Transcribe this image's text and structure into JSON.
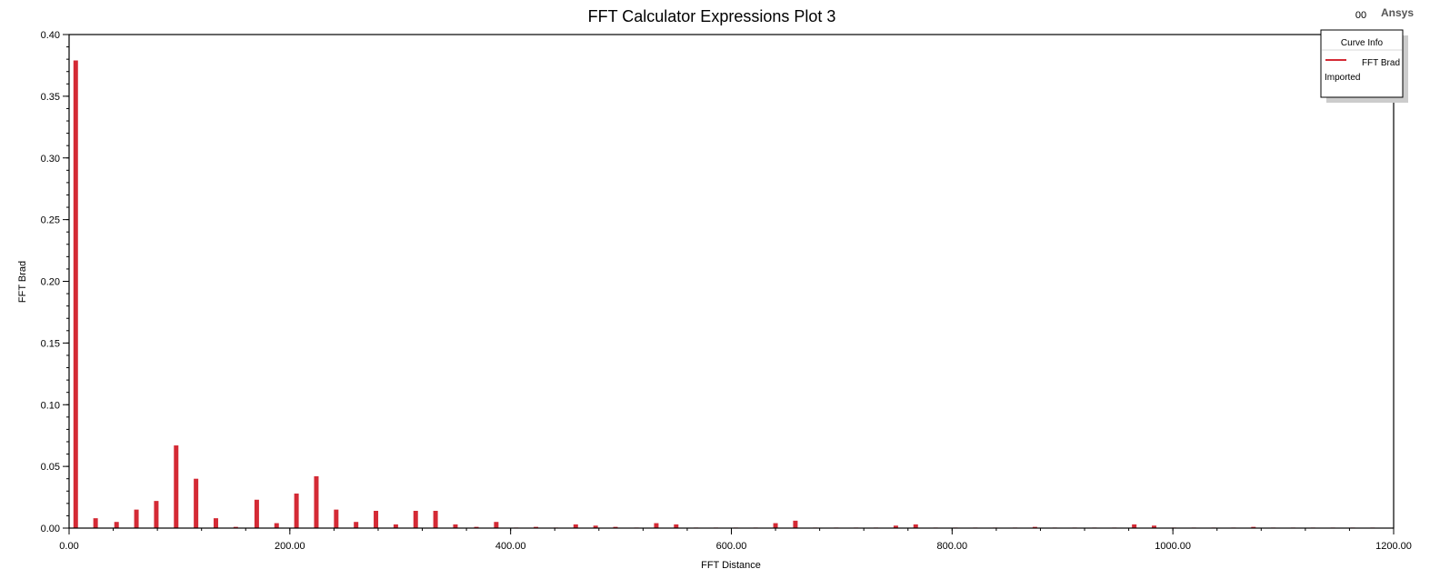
{
  "header": {
    "title": "FFT Calculator Expressions Plot 3",
    "brand_prefix": "00",
    "brand": "Ansys"
  },
  "legend": {
    "title": "Curve Info",
    "entries": [
      {
        "label": "FFT Brad",
        "sublabel": "Imported",
        "color": "#d42a35"
      }
    ]
  },
  "colors": {
    "bar": "#d42a35",
    "axis": "#000000",
    "shadow": "#cccccc"
  },
  "chart_data": {
    "type": "bar",
    "title": "FFT Calculator Expressions Plot 3",
    "xlabel": "FFT Distance",
    "ylabel": "FFT Brad",
    "xlim": [
      0,
      1200
    ],
    "ylim": [
      0,
      0.4
    ],
    "grid": false,
    "legend_position": "top-right",
    "x_ticks": [
      "0.00",
      "200.00",
      "400.00",
      "600.00",
      "800.00",
      "1000.00",
      "1200.00"
    ],
    "y_ticks": [
      "0.00",
      "0.05",
      "0.10",
      "0.15",
      "0.20",
      "0.25",
      "0.30",
      "0.35",
      "0.40"
    ],
    "series": [
      {
        "name": "FFT Brad",
        "x": [
          6,
          24,
          43,
          61,
          79,
          97,
          115,
          133,
          151,
          170,
          188,
          206,
          224,
          242,
          260,
          278,
          296,
          314,
          332,
          350,
          369,
          387,
          405,
          423,
          441,
          459,
          477,
          495,
          514,
          532,
          550,
          568,
          586,
          604,
          622,
          640,
          658,
          676,
          695,
          713,
          731,
          749,
          767,
          785,
          803,
          821,
          839,
          857,
          875,
          893,
          911,
          929,
          947,
          965,
          983,
          1001,
          1019,
          1037,
          1055,
          1073,
          1091,
          1109,
          1127,
          1145,
          1163,
          1181
        ],
        "values": [
          0.379,
          0.008,
          0.005,
          0.015,
          0.022,
          0.067,
          0.04,
          0.008,
          0.001,
          0.023,
          0.004,
          0.028,
          0.042,
          0.015,
          0.005,
          0.014,
          0.003,
          0.014,
          0.014,
          0.003,
          0.001,
          0.005,
          0.0,
          0.001,
          0.0,
          0.003,
          0.002,
          0.001,
          0.0,
          0.004,
          0.003,
          0.0,
          0.0,
          0.0,
          0.0,
          0.004,
          0.006,
          0.0,
          0.0,
          0.0,
          0.0,
          0.002,
          0.003,
          0.0,
          0.0,
          0.0,
          0.0,
          0.0,
          0.001,
          0.0,
          0.0,
          0.0,
          0.0,
          0.003,
          0.002,
          0.0,
          0.0,
          0.0,
          0.0,
          0.001,
          0.0,
          0.0,
          0.0,
          0.0,
          0.0,
          0.0
        ]
      }
    ]
  }
}
